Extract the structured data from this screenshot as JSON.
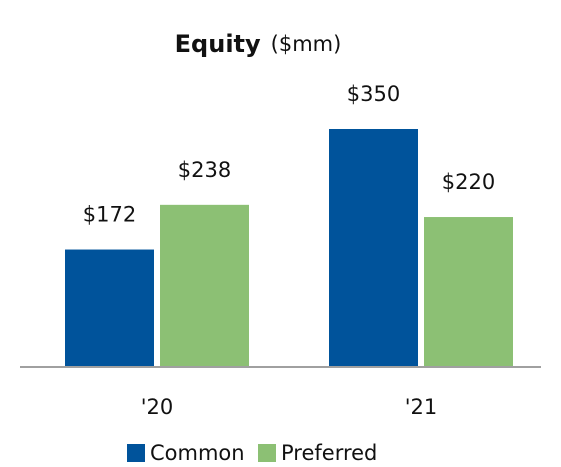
{
  "chart_data": {
    "type": "bar",
    "title": "Equity",
    "subtitle": "($mm)",
    "categories": [
      "'20",
      "'21"
    ],
    "series": [
      {
        "name": "Common",
        "color": "#00539b",
        "values": [
          172,
          350
        ],
        "value_labels": [
          "$172",
          "$350"
        ]
      },
      {
        "name": "Preferred",
        "color": "#8cc074",
        "values": [
          238,
          220
        ],
        "value_labels": [
          "$238",
          "$220"
        ]
      }
    ]
  }
}
